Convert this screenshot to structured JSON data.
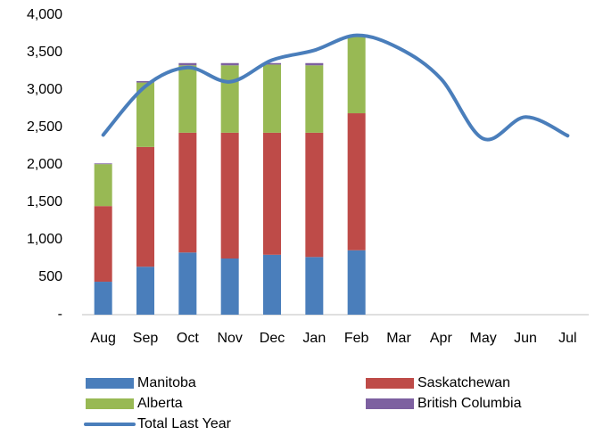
{
  "chart_data": {
    "type": "bar",
    "categories": [
      "Aug",
      "Sep",
      "Oct",
      "Nov",
      "Dec",
      "Jan",
      "Feb",
      "Mar",
      "Apr",
      "May",
      "Jun",
      "Jul"
    ],
    "stacked": true,
    "series": [
      {
        "name": "Manitoba",
        "color": "#4a7ebb",
        "values": [
          440,
          640,
          830,
          750,
          800,
          770,
          860,
          null,
          null,
          null,
          null,
          null
        ]
      },
      {
        "name": "Saskatchewan",
        "color": "#be4b48",
        "values": [
          1010,
          1600,
          1600,
          1680,
          1630,
          1660,
          1830,
          null,
          null,
          null,
          null,
          null
        ]
      },
      {
        "name": "Alberta",
        "color": "#98b954",
        "values": [
          560,
          860,
          900,
          900,
          910,
          900,
          1040,
          null,
          null,
          null,
          null,
          null
        ]
      },
      {
        "name": "British Columbia",
        "color": "#7d60a0",
        "values": [
          10,
          20,
          30,
          30,
          20,
          30,
          0,
          null,
          null,
          null,
          null,
          null
        ]
      },
      {
        "name": "Total Last Year",
        "color": "#4a7ebb",
        "type": "line",
        "values": [
          2400,
          3050,
          3300,
          3110,
          3400,
          3530,
          3730,
          3560,
          3150,
          2350,
          2640,
          2390
        ]
      }
    ],
    "ylim": [
      0,
      4000
    ],
    "yticks": [
      {
        "value": 0,
        "label": "-"
      },
      500,
      {
        "value": 1000,
        "label": "1,000"
      },
      {
        "value": 1500,
        "label": "1,500"
      },
      {
        "value": 2000,
        "label": "2,000"
      },
      {
        "value": 2500,
        "label": "2,500"
      },
      {
        "value": 3000,
        "label": "3,000"
      },
      {
        "value": 3500,
        "label": "3,500"
      },
      {
        "value": 4000,
        "label": "4,000"
      }
    ],
    "grid": false,
    "legend": "bottom"
  }
}
